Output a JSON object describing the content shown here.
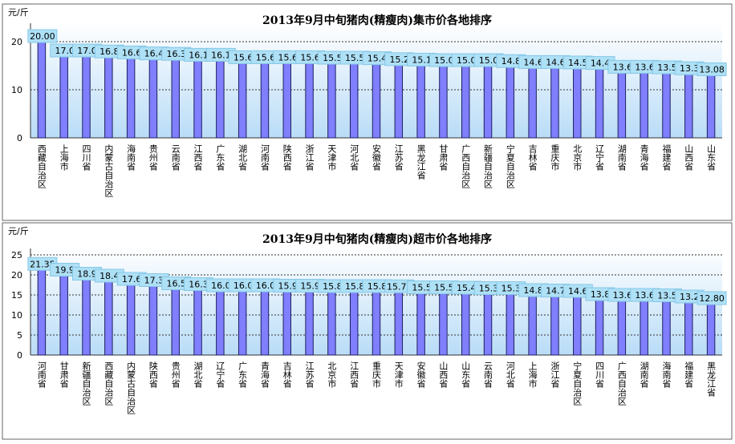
{
  "chart_data": [
    {
      "type": "bar",
      "title": "2013年9月中旬猪肉(精瘦肉)集市价各地排序",
      "y_label": "元/斤",
      "categories": [
        "西藏自治区",
        "上海市",
        "四川省",
        "内蒙古自治区",
        "海南省",
        "贵州省",
        "云南省",
        "江西省",
        "广东省",
        "湖北省",
        "河南省",
        "陕西省",
        "浙江省",
        "天津市",
        "河北省",
        "安徽省",
        "江苏省",
        "黑龙江省",
        "甘肃省",
        "广西自治区",
        "新疆自治区",
        "宁夏自治区",
        "吉林省",
        "重庆市",
        "北京市",
        "辽宁省",
        "湖南省",
        "青海省",
        "福建省",
        "山西省",
        "山东省"
      ],
      "values": [
        20.0,
        17.0,
        17.0,
        16.8,
        16.6,
        16.4,
        16.3,
        16.1,
        16.1,
        15.6,
        15.6,
        15.6,
        15.6,
        15.5,
        15.5,
        15.4,
        15.2,
        15.1,
        15.0,
        15.0,
        15.0,
        14.8,
        14.6,
        14.6,
        14.5,
        14.4,
        13.6,
        13.6,
        13.5,
        13.3,
        13.08
      ],
      "value_labels": [
        "20.00",
        "17.0",
        "17.0",
        "16.8",
        "16.6",
        "16.4",
        "16.3",
        "16.1",
        "16.1",
        "15.6",
        "15.6",
        "15.6",
        "15.6",
        "15.5",
        "15.5",
        "15.4",
        "15.2",
        "15.1",
        "15.0",
        "15.0",
        "15.0",
        "14.8",
        "14.6",
        "14.6",
        "14.5",
        "14.4",
        "13.6",
        "13.6",
        "13.5",
        "13.3",
        "13.08"
      ],
      "color": "#7f7fff",
      "ylim": [
        0,
        22.5
      ],
      "yticks": [
        0,
        10,
        20
      ],
      "grid": true
    },
    {
      "type": "bar",
      "title": "2013年9月中旬猪肉(精瘦肉)超市价各地排序",
      "y_label": "元/斤",
      "categories": [
        "河南省",
        "甘肃省",
        "新疆自治区",
        "西藏自治区",
        "内蒙古自治区",
        "陕西省",
        "贵州省",
        "湖北省",
        "辽宁省",
        "广东省",
        "青海省",
        "吉林省",
        "江苏省",
        "北京市",
        "江西省",
        "重庆市",
        "天津市",
        "安徽省",
        "山西省",
        "山东省",
        "云南省",
        "河北省",
        "上海市",
        "浙江省",
        "宁夏自治区",
        "四川省",
        "广西自治区",
        "湖南省",
        "海南省",
        "福建省",
        "黑龙江省"
      ],
      "values": [
        21.35,
        19.9,
        18.9,
        18.4,
        17.6,
        17.3,
        16.5,
        16.3,
        16.0,
        16.0,
        16.0,
        15.9,
        15.9,
        15.8,
        15.8,
        15.8,
        15.75,
        15.5,
        15.5,
        15.4,
        15.3,
        15.3,
        14.8,
        14.7,
        14.6,
        13.8,
        13.6,
        13.6,
        13.5,
        13.2,
        12.8
      ],
      "value_labels": [
        "21.35",
        "19.9",
        "18.9",
        "18.4",
        "17.6",
        "17.3",
        "16.5",
        "16.3",
        "16.0",
        "16.0",
        "16.0",
        "15.9",
        "15.9",
        "15.8",
        "15.8",
        "15.8",
        "15.75",
        "15.5",
        "15.5",
        "15.4",
        "15.3",
        "15.3",
        "14.8",
        "14.7",
        "14.6",
        "13.8",
        "13.6",
        "13.6",
        "13.5",
        "13.2",
        "12.80"
      ],
      "color": "#7f7fff",
      "ylim": [
        0,
        25
      ],
      "yticks": [
        0,
        5,
        10,
        15,
        20,
        25
      ],
      "grid": true
    }
  ]
}
